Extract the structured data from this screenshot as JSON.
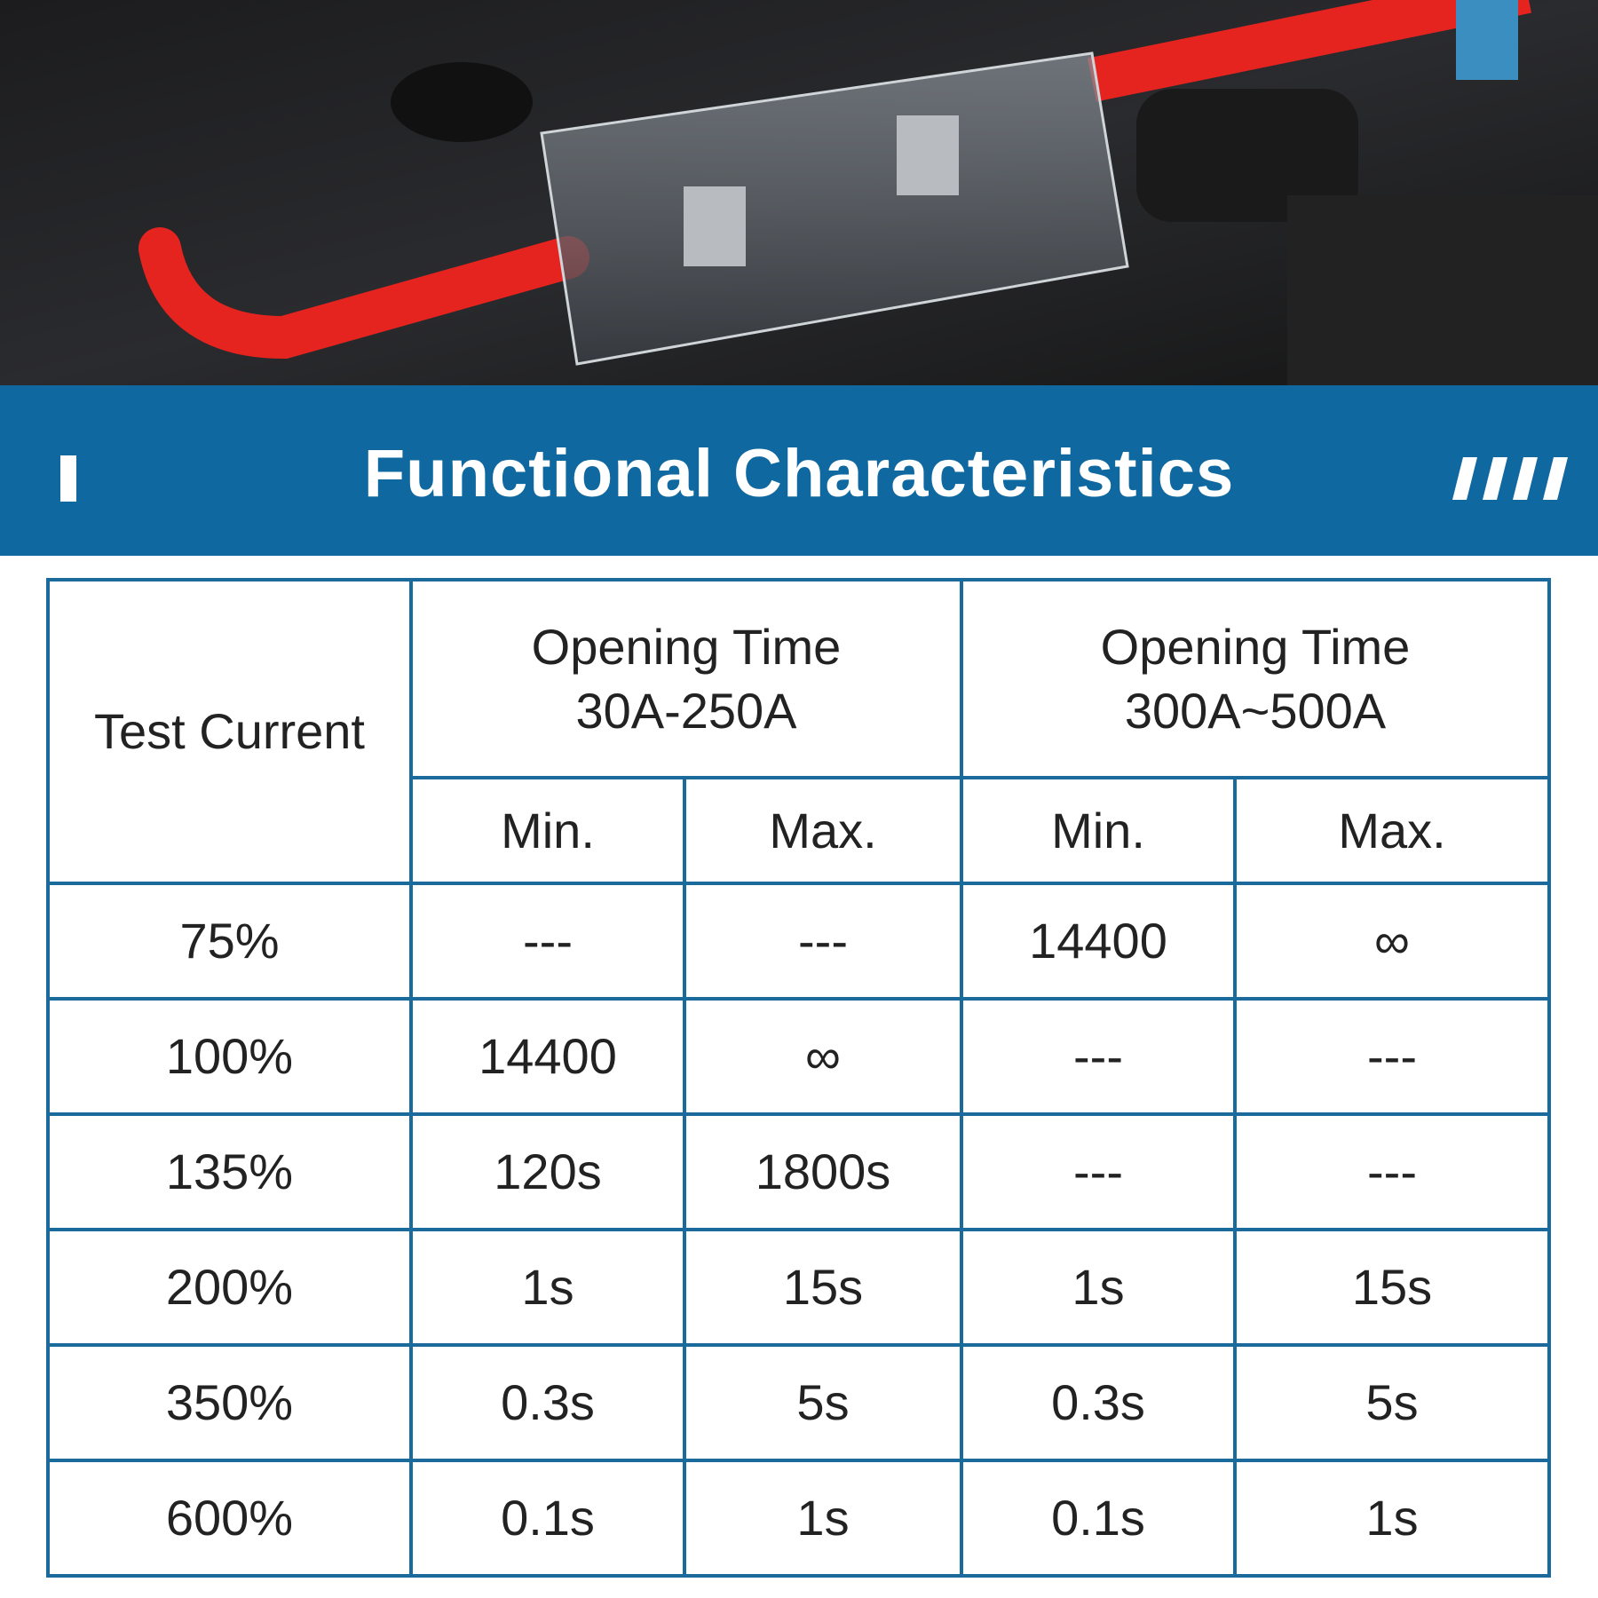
{
  "header": {
    "title": "Functional Characteristics"
  },
  "colors": {
    "banner": "#0f69a0",
    "grid": "#1b6a9c",
    "text": "#222222"
  },
  "table": {
    "row_header": "Test Current",
    "groups": [
      {
        "line1": "Opening Time",
        "line2": "30A-250A"
      },
      {
        "line1": "Opening Time",
        "line2": "300A~500A"
      }
    ],
    "subheaders": [
      "Min.",
      "Max.",
      "Min.",
      "Max."
    ],
    "rows": [
      {
        "current": "75%",
        "values": [
          "---",
          "---",
          "14400",
          "∞"
        ]
      },
      {
        "current": "100%",
        "values": [
          "14400",
          "∞",
          "---",
          "---"
        ]
      },
      {
        "current": "135%",
        "values": [
          "120s",
          "1800s",
          "---",
          "---"
        ]
      },
      {
        "current": "200%",
        "values": [
          "1s",
          "15s",
          "1s",
          "15s"
        ]
      },
      {
        "current": "350%",
        "values": [
          "0.3s",
          "5s",
          "0.3s",
          "5s"
        ]
      },
      {
        "current": "600%",
        "values": [
          "0.1s",
          "1s",
          "0.1s",
          "1s"
        ]
      }
    ]
  }
}
